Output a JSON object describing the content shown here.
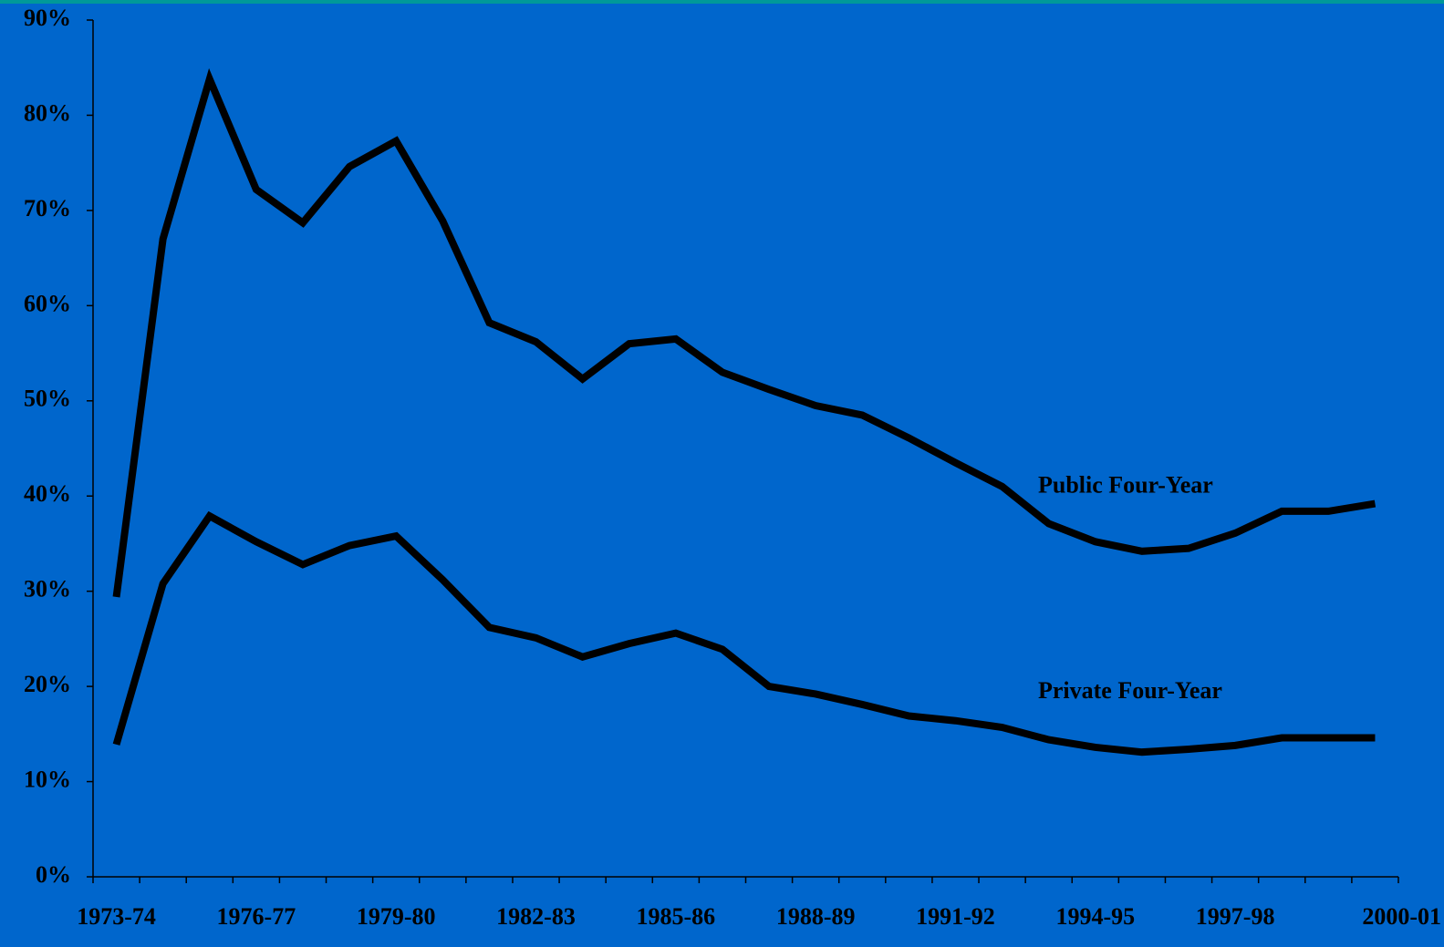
{
  "chart_data": {
    "type": "line",
    "categories": [
      "1973-74",
      null,
      null,
      "1976-77",
      null,
      null,
      "1979-80",
      null,
      null,
      "1982-83",
      null,
      null,
      "1985-86",
      null,
      null,
      "1988-89",
      null,
      null,
      "1991-92",
      null,
      null,
      "1994-95",
      null,
      null,
      "1997-98",
      null,
      null,
      "2000-01"
    ],
    "series": [
      {
        "name": "Public Four-Year",
        "color": "#000000",
        "values": [
          29.4,
          67,
          83.8,
          72.2,
          68.7,
          74.6,
          77.3,
          68.9,
          58.2,
          56.2,
          52.3,
          56,
          56.5,
          53,
          51.2,
          49.5,
          48.5,
          46.1,
          43.5,
          41,
          37.1,
          35.2,
          34.2,
          34.5,
          36.1,
          38.4,
          38.4,
          39.2
        ]
      },
      {
        "name": "Private Four-Year",
        "color": "#000000",
        "values": [
          13.9,
          30.8,
          37.9,
          35.2,
          32.8,
          34.8,
          35.8,
          31.2,
          26.2,
          25.1,
          23.1,
          24.5,
          25.6,
          23.9,
          20,
          19.2,
          18.1,
          16.9,
          16.4,
          15.7,
          14.4,
          13.6,
          13.1,
          13.4,
          13.8,
          14.6,
          14.6,
          14.6
        ]
      }
    ],
    "ylim": [
      0,
      90
    ],
    "yticks": [
      {
        "value": 0,
        "label": "0%"
      },
      {
        "value": 10,
        "label": "10%"
      },
      {
        "value": 20,
        "label": "20%"
      },
      {
        "value": 30,
        "label": "30%"
      },
      {
        "value": 40,
        "label": "40%"
      },
      {
        "value": 50,
        "label": "50%"
      },
      {
        "value": 60,
        "label": "60%"
      },
      {
        "value": 70,
        "label": "70%"
      },
      {
        "value": 80,
        "label": "80%"
      },
      {
        "value": 90,
        "label": "90%"
      }
    ],
    "grid": false
  }
}
